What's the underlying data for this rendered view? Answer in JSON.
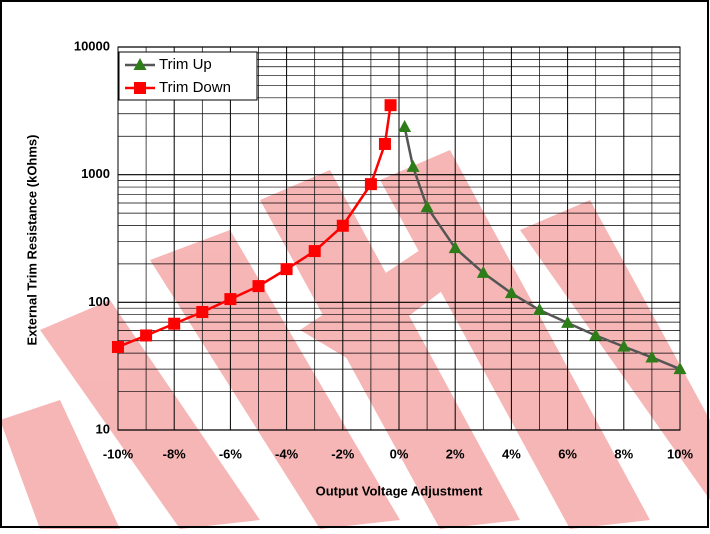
{
  "chart_data": {
    "type": "line",
    "x_label": "Output Voltage Adjustment",
    "y_label": "External Trim Resistance (kOhms)",
    "log_y": true,
    "grid": true,
    "legend": "upper left",
    "xlim": [
      -10,
      10
    ],
    "xticks": [
      {
        "value": -10,
        "label": "-10%"
      },
      {
        "value": -8,
        "label": "-8%"
      },
      {
        "value": -6,
        "label": "-6%"
      },
      {
        "value": -4,
        "label": "-4%"
      },
      {
        "value": -2,
        "label": "-2%"
      },
      {
        "value": 0,
        "label": "0%"
      },
      {
        "value": 2,
        "label": "2%"
      },
      {
        "value": 4,
        "label": "4%"
      },
      {
        "value": 6,
        "label": "6%"
      },
      {
        "value": 8,
        "label": "8%"
      },
      {
        "value": 10,
        "label": "10%"
      }
    ],
    "xminorticks": [
      -9,
      -7,
      -5,
      -3,
      -1,
      1,
      3,
      5,
      7,
      9
    ],
    "ylim": [
      10,
      10000
    ],
    "yticks": [
      10,
      100,
      1000,
      10000
    ],
    "yminorticks": [
      20,
      30,
      40,
      50,
      60,
      70,
      80,
      90,
      200,
      300,
      400,
      500,
      600,
      700,
      800,
      900,
      2000,
      3000,
      4000,
      5000,
      6000,
      7000,
      8000,
      9000
    ],
    "series": [
      {
        "name": "Trim Up",
        "color": "#555555",
        "marker_color": "#2e7d1a",
        "marker": "triangle",
        "x": [
          0.2,
          0.5,
          1,
          2,
          3,
          4,
          5,
          6,
          7,
          8,
          9,
          10
        ],
        "values": [
          2360,
          1150,
          557,
          266,
          170,
          118,
          87,
          69,
          55,
          45,
          37,
          30
        ]
      },
      {
        "name": "Trim Down",
        "color": "#ff0000",
        "marker_color": "#ff0000",
        "marker": "square",
        "x": [
          -10,
          -9,
          -8,
          -7,
          -6,
          -5,
          -4,
          -3,
          -2,
          -1,
          -0.5,
          -0.3
        ],
        "values": [
          44.7,
          55,
          68,
          84,
          106,
          134,
          182,
          252,
          398,
          843,
          1740,
          3500
        ]
      }
    ]
  }
}
